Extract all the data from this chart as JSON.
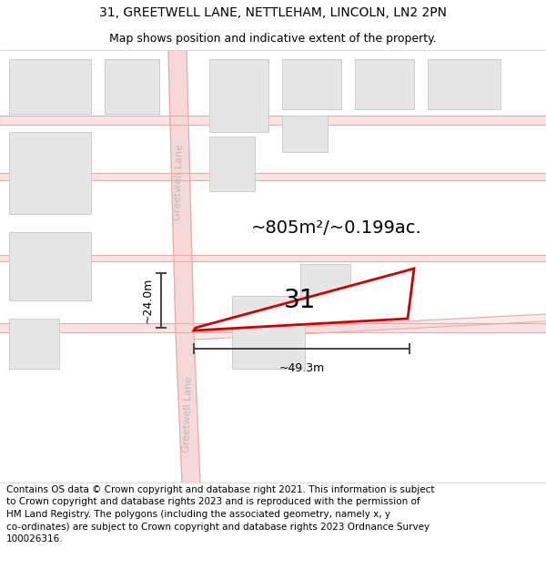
{
  "title_line1": "31, GREETWELL LANE, NETTLEHAM, LINCOLN, LN2 2PN",
  "title_line2": "Map shows position and indicative extent of the property.",
  "footer_text": "Contains OS data © Crown copyright and database right 2021. This information is subject to Crown copyright and database rights 2023 and is reproduced with the permission of HM Land Registry. The polygons (including the associated geometry, namely x, y co-ordinates) are subject to Crown copyright and database rights 2023 Ordnance Survey 100026316.",
  "area_label": "~805m²/~0.199ac.",
  "width_label": "~49.3m",
  "height_label": "~24.0m",
  "number_label": "31",
  "background_color": "#ffffff",
  "road_fill_color": "#f7d8d8",
  "road_line_color": "#e8a8a8",
  "building_fill": "#e6e6e6",
  "building_edge": "#cccccc",
  "plot_outline_color": "#cc0000",
  "road_label_color": "#bbbbbb",
  "dim_line_color": "#444444",
  "title_fontsize": 10,
  "subtitle_fontsize": 9,
  "footer_fontsize": 7.5,
  "area_fontsize": 14,
  "number_fontsize": 20,
  "dim_fontsize": 9,
  "road_label_fontsize": 8
}
